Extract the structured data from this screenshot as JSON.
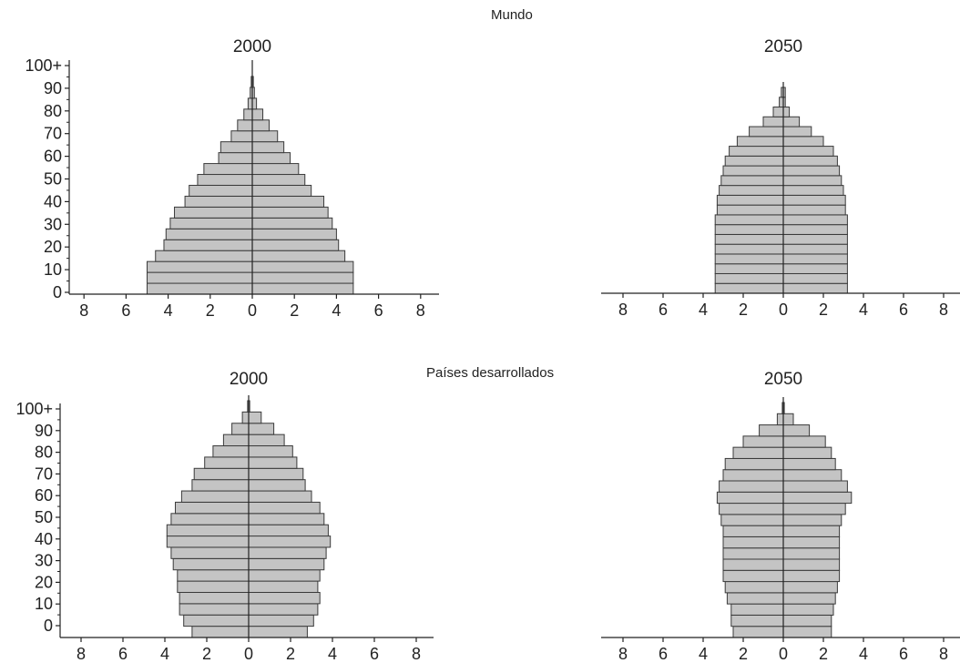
{
  "sections": {
    "top_title": "Mundo",
    "bottom_title": "Países desarrollados"
  },
  "chart_data": [
    {
      "type": "bar",
      "section": "Mundo",
      "title": "2000",
      "age_labels": [
        "0",
        "10",
        "20",
        "30",
        "40",
        "50",
        "60",
        "70",
        "80",
        "90",
        "100+"
      ],
      "x_ticks": [
        "8",
        "6",
        "4",
        "2",
        "0",
        "2",
        "4",
        "6",
        "8"
      ],
      "xlim": [
        -9,
        9
      ],
      "male": [
        5.0,
        5.0,
        5.0,
        4.6,
        4.2,
        4.1,
        3.9,
        3.7,
        3.2,
        3.0,
        2.6,
        2.3,
        1.6,
        1.5,
        1.0,
        0.7,
        0.4,
        0.2,
        0.1,
        0.05,
        0.0
      ],
      "female": [
        4.8,
        4.8,
        4.8,
        4.4,
        4.1,
        4.0,
        3.8,
        3.6,
        3.4,
        2.8,
        2.5,
        2.2,
        1.8,
        1.5,
        1.2,
        0.8,
        0.5,
        0.2,
        0.1,
        0.05,
        0.0
      ]
    },
    {
      "type": "bar",
      "section": "Mundo",
      "title": "2050",
      "x_ticks": [
        "8",
        "6",
        "4",
        "2",
        "0",
        "2",
        "4",
        "6",
        "8"
      ],
      "xlim": [
        -9,
        9
      ],
      "male": [
        3.4,
        3.4,
        3.4,
        3.4,
        3.4,
        3.4,
        3.4,
        3.4,
        3.3,
        3.3,
        3.2,
        3.1,
        3.0,
        2.9,
        2.7,
        2.3,
        1.7,
        1.0,
        0.5,
        0.2,
        0.1
      ],
      "female": [
        3.2,
        3.2,
        3.2,
        3.2,
        3.2,
        3.2,
        3.2,
        3.2,
        3.1,
        3.1,
        3.0,
        2.9,
        2.8,
        2.7,
        2.5,
        2.0,
        1.4,
        0.8,
        0.3,
        0.1,
        0.1
      ]
    },
    {
      "type": "bar",
      "section": "Países desarrollados",
      "title": "2000",
      "age_labels": [
        "0",
        "10",
        "20",
        "30",
        "40",
        "50",
        "60",
        "70",
        "80",
        "90",
        "100+"
      ],
      "x_ticks": [
        "8",
        "6",
        "4",
        "2",
        "0",
        "2",
        "4",
        "6",
        "8"
      ],
      "xlim": [
        -9,
        9
      ],
      "male": [
        2.7,
        3.1,
        3.3,
        3.3,
        3.4,
        3.4,
        3.6,
        3.7,
        3.9,
        3.9,
        3.7,
        3.5,
        3.2,
        2.7,
        2.6,
        2.1,
        1.7,
        1.2,
        0.8,
        0.3,
        0.05
      ],
      "female": [
        2.8,
        3.1,
        3.3,
        3.4,
        3.3,
        3.4,
        3.6,
        3.7,
        3.9,
        3.8,
        3.6,
        3.4,
        3.0,
        2.7,
        2.6,
        2.3,
        2.1,
        1.7,
        1.2,
        0.6,
        0.05
      ]
    },
    {
      "type": "bar",
      "section": "Países desarrollados",
      "title": "2050",
      "x_ticks": [
        "8",
        "6",
        "4",
        "2",
        "0",
        "2",
        "4",
        "6",
        "8"
      ],
      "xlim": [
        -9,
        9
      ],
      "male": [
        2.5,
        2.6,
        2.6,
        2.8,
        2.9,
        3.0,
        3.0,
        3.0,
        3.0,
        3.0,
        3.1,
        3.2,
        3.3,
        3.2,
        3.0,
        2.9,
        2.5,
        2.0,
        1.2,
        0.3,
        0.05
      ],
      "female": [
        2.4,
        2.4,
        2.5,
        2.6,
        2.7,
        2.8,
        2.8,
        2.8,
        2.8,
        2.8,
        2.9,
        3.1,
        3.4,
        3.2,
        2.9,
        2.6,
        2.4,
        2.1,
        1.3,
        0.5,
        0.05
      ]
    }
  ],
  "colors": {
    "bar_fill": "#c4c4c4",
    "bar_stroke": "#3a3a3a",
    "axis": "#222222"
  }
}
